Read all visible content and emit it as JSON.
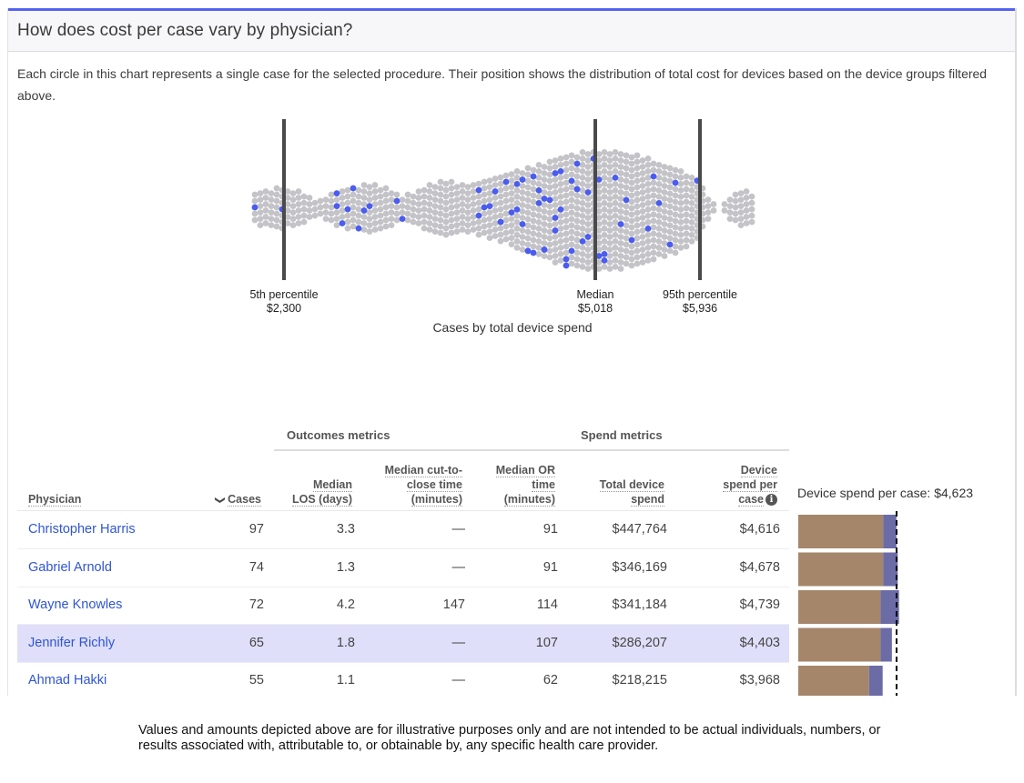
{
  "card": {
    "title": "How does cost per case vary by physician?",
    "description": "Each circle in this chart represents a single case for the selected procedure. Their position shows the distribution of total cost for devices based on the device groups filtered above."
  },
  "colors": {
    "accent": "#5462f5",
    "dot_default": "#c4c4c8",
    "dot_highlight": "#4b5cf0",
    "reference_line": "#4a4a4a",
    "bar_base": "#a5866b",
    "bar_extra": "#6b6ba6",
    "row_highlight": "#dfdffa",
    "link": "#2f55d4"
  },
  "chart_data": [
    {
      "type": "scatter",
      "subtype": "beeswarm",
      "title": "Cases by total device spend",
      "xlabel": "Cases by total device spend",
      "x_range": [
        1350,
        7300
      ],
      "x_unit": "USD",
      "reference_lines": [
        {
          "label": "5th percentile",
          "value_label": "$2,300",
          "value": 2300
        },
        {
          "label": "Median",
          "value_label": "$5,018",
          "value": 5018
        },
        {
          "label": "95th percentile",
          "value_label": "$5,936",
          "value": 5936
        }
      ],
      "density_profile": [
        {
          "x": 1400,
          "stack": 5
        },
        {
          "x": 1800,
          "stack": 6
        },
        {
          "x": 2100,
          "stack": 7
        },
        {
          "x": 2400,
          "stack": 6
        },
        {
          "x": 2600,
          "stack": 3
        },
        {
          "x": 2850,
          "stack": 7
        },
        {
          "x": 3100,
          "stack": 8
        },
        {
          "x": 3350,
          "stack": 4
        },
        {
          "x": 3650,
          "stack": 9
        },
        {
          "x": 3950,
          "stack": 8
        },
        {
          "x": 4200,
          "stack": 11
        },
        {
          "x": 4450,
          "stack": 14
        },
        {
          "x": 4700,
          "stack": 17
        },
        {
          "x": 4950,
          "stack": 19
        },
        {
          "x": 5200,
          "stack": 19
        },
        {
          "x": 5450,
          "stack": 17
        },
        {
          "x": 5700,
          "stack": 14
        },
        {
          "x": 5936,
          "stack": 9
        },
        {
          "x": 6100,
          "stack": 3
        },
        {
          "x": 6300,
          "stack": 0
        },
        {
          "x": 6450,
          "stack": 4
        },
        {
          "x": 6700,
          "stack": 6
        },
        {
          "x": 6900,
          "stack": 5
        }
      ],
      "highlighted_case_count": 65,
      "highlighted_for": "Jennifer Richly",
      "highlighted_positions": [
        1400,
        2300,
        2750,
        2790,
        2830,
        2870,
        2900,
        2960,
        3000,
        3060,
        3300,
        3320,
        4000,
        4020,
        4040,
        4150,
        4200,
        4250,
        4290,
        4320,
        4350,
        4400,
        4420,
        4460,
        4480,
        4510,
        4550,
        4590,
        4620,
        4650,
        4680,
        4700,
        4720,
        4750,
        4780,
        4810,
        4830,
        4860,
        4890,
        4920,
        4950,
        4980,
        5000,
        5030,
        5060,
        5100,
        5120,
        5200,
        5250,
        5300,
        5350,
        5480,
        5520,
        5600,
        5700,
        5750,
        5936,
        4100,
        4180,
        4380,
        4430,
        4530,
        4600,
        4730,
        4840
      ]
    },
    {
      "type": "bar",
      "subtype": "stacked-horizontal",
      "title": "Device spend per case: $4,623",
      "reference_value": 4623,
      "categories": [
        "Christopher Harris",
        "Gabriel Arnold",
        "Wayne Knowles",
        "Jennifer Richly",
        "Ahmad Hakki"
      ],
      "series": [
        {
          "name": "base",
          "values": [
            3990,
            3990,
            3870,
            3870,
            3330
          ]
        },
        {
          "name": "additional",
          "values": [
            626,
            688,
            869,
            533,
            638
          ]
        }
      ],
      "totals": [
        4616,
        4678,
        4739,
        4403,
        3968
      ],
      "x_range": [
        0,
        5000
      ]
    }
  ],
  "table": {
    "groups": [
      {
        "label": "Outcomes metrics"
      },
      {
        "label": "Spend metrics"
      }
    ],
    "columns": [
      {
        "key": "physician",
        "label": "Physician"
      },
      {
        "key": "cases",
        "label": "Cases",
        "sorted": "desc"
      },
      {
        "key": "los",
        "label": "Median LOS (days)"
      },
      {
        "key": "ctc",
        "label": "Median cut-to-close time (minutes)"
      },
      {
        "key": "or",
        "label": "Median OR time (minutes)"
      },
      {
        "key": "total",
        "label": "Total device spend"
      },
      {
        "key": "per_case",
        "label": "Device spend per case",
        "info": true
      }
    ],
    "header_lines": {
      "physician": [
        "Physician"
      ],
      "cases": [
        "Cases"
      ],
      "los": [
        "Median",
        "LOS (days)"
      ],
      "ctc": [
        "Median cut-to-",
        "close time",
        "(minutes)"
      ],
      "or": [
        "Median OR",
        "time",
        "(minutes)"
      ],
      "total": [
        "Total device",
        "spend"
      ],
      "per_case": [
        "Device",
        "spend per",
        "case"
      ]
    },
    "rows": [
      {
        "physician": "Christopher Harris",
        "cases": "97",
        "los": "3.3",
        "ctc": "—",
        "or": "91",
        "total": "$447,764",
        "per_case": "$4,616",
        "highlighted": false
      },
      {
        "physician": "Gabriel Arnold",
        "cases": "74",
        "los": "1.3",
        "ctc": "—",
        "or": "91",
        "total": "$346,169",
        "per_case": "$4,678",
        "highlighted": false
      },
      {
        "physician": "Wayne Knowles",
        "cases": "72",
        "los": "4.2",
        "ctc": "147",
        "or": "114",
        "total": "$341,184",
        "per_case": "$4,739",
        "highlighted": false
      },
      {
        "physician": "Jennifer Richly",
        "cases": "65",
        "los": "1.8",
        "ctc": "—",
        "or": "107",
        "total": "$286,207",
        "per_case": "$4,403",
        "highlighted": true
      },
      {
        "physician": "Ahmad Hakki",
        "cases": "55",
        "los": "1.1",
        "ctc": "—",
        "or": "62",
        "total": "$218,215",
        "per_case": "$3,968",
        "highlighted": false
      }
    ]
  },
  "icons": {
    "sort": "chevron-down-icon",
    "info": "info-icon"
  },
  "disclaimer": "Values and amounts depicted above are for illustrative purposes only and are not intended to be actual individuals, numbers, or results associated with, attributable to, or obtainable by, any specific health care provider."
}
